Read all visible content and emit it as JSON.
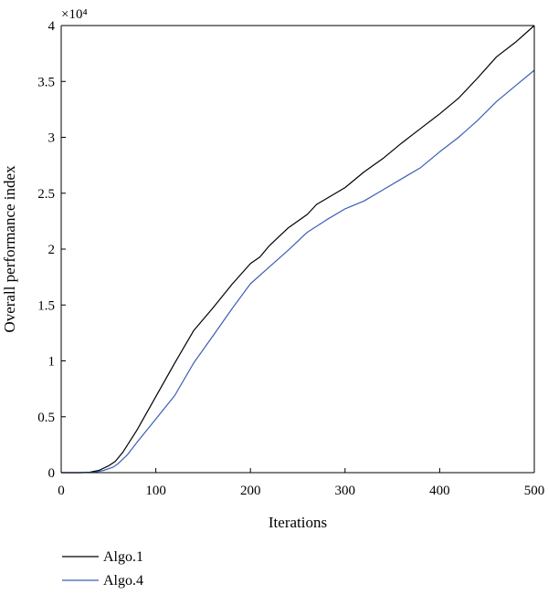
{
  "chart_data": {
    "type": "line",
    "title": "",
    "xlabel": "Iterations",
    "ylabel": "Overall performance index",
    "y_multiplier_label": "×10⁴",
    "xlim": [
      0,
      500
    ],
    "ylim": [
      0,
      4
    ],
    "x_ticks": [
      "0",
      "100",
      "200",
      "300",
      "400",
      "500"
    ],
    "y_ticks": [
      "0",
      "0.5",
      "1",
      "1.5",
      "2",
      "2.5",
      "3",
      "3.5",
      "4"
    ],
    "x_tick_values": [
      0,
      100,
      200,
      300,
      400,
      500
    ],
    "y_tick_values": [
      0,
      0.5,
      1,
      1.5,
      2,
      2.5,
      3,
      3.5,
      4
    ],
    "grid": false,
    "legend_position": "bottom-left, below plot",
    "series": [
      {
        "name": "Algo.1",
        "color": "#000000",
        "x": [
          0,
          20,
          30,
          40,
          50,
          57,
          65,
          80,
          100,
          120,
          140,
          160,
          180,
          200,
          210,
          220,
          240,
          260,
          270,
          280,
          300,
          320,
          340,
          360,
          380,
          400,
          420,
          440,
          460,
          480,
          500
        ],
        "y": [
          0,
          0,
          0.003,
          0.02,
          0.06,
          0.1,
          0.18,
          0.38,
          0.68,
          0.98,
          1.27,
          1.47,
          1.68,
          1.87,
          1.93,
          2.03,
          2.19,
          2.31,
          2.4,
          2.45,
          2.55,
          2.69,
          2.81,
          2.95,
          3.08,
          3.21,
          3.35,
          3.53,
          3.72,
          3.85,
          4.0
        ]
      },
      {
        "name": "Algo.4",
        "color": "#3a5fb4",
        "x": [
          0,
          20,
          35,
          45,
          55,
          60,
          70,
          80,
          100,
          120,
          140,
          160,
          180,
          200,
          220,
          240,
          260,
          280,
          300,
          320,
          340,
          360,
          380,
          400,
          420,
          440,
          460,
          480,
          500
        ],
        "y": [
          0,
          0,
          0.003,
          0.02,
          0.05,
          0.08,
          0.16,
          0.27,
          0.48,
          0.69,
          0.98,
          1.22,
          1.46,
          1.69,
          1.84,
          1.99,
          2.15,
          2.26,
          2.36,
          2.43,
          2.53,
          2.63,
          2.73,
          2.87,
          3.0,
          3.15,
          3.32,
          3.46,
          3.6
        ]
      }
    ]
  }
}
